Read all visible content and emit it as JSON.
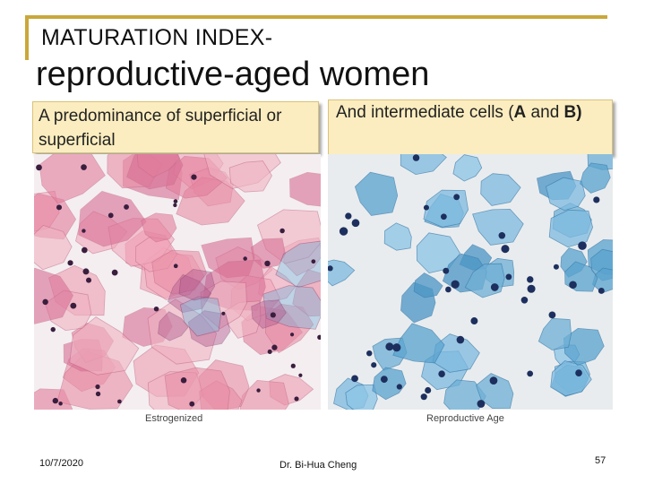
{
  "slide": {
    "title_line1": "MATURATION INDEX-",
    "title_line2": "reproductive-aged women",
    "caption_left": "A predominance of superficial or superficial",
    "caption_right_text": "And intermediate cells (",
    "caption_right_a": "A",
    "caption_right_and": " and ",
    "caption_right_b": "B",
    "caption_right_end": ")",
    "image_left_label": "Estrogenized",
    "image_right_label": "Reproductive Age",
    "footer_date": "10/7/2020",
    "footer_author": "Dr. Bi-Hua Cheng",
    "page_number": "57"
  },
  "colors": {
    "accent_line": "#c9a83a",
    "caption_bg": "#fbedbf",
    "left_stain": "#e98fa6",
    "right_stain": "#6fb0d6"
  },
  "images": {
    "left": "pink-stained-superficial-cells-micrograph",
    "right": "blue-stained-intermediate-cells-micrograph"
  }
}
